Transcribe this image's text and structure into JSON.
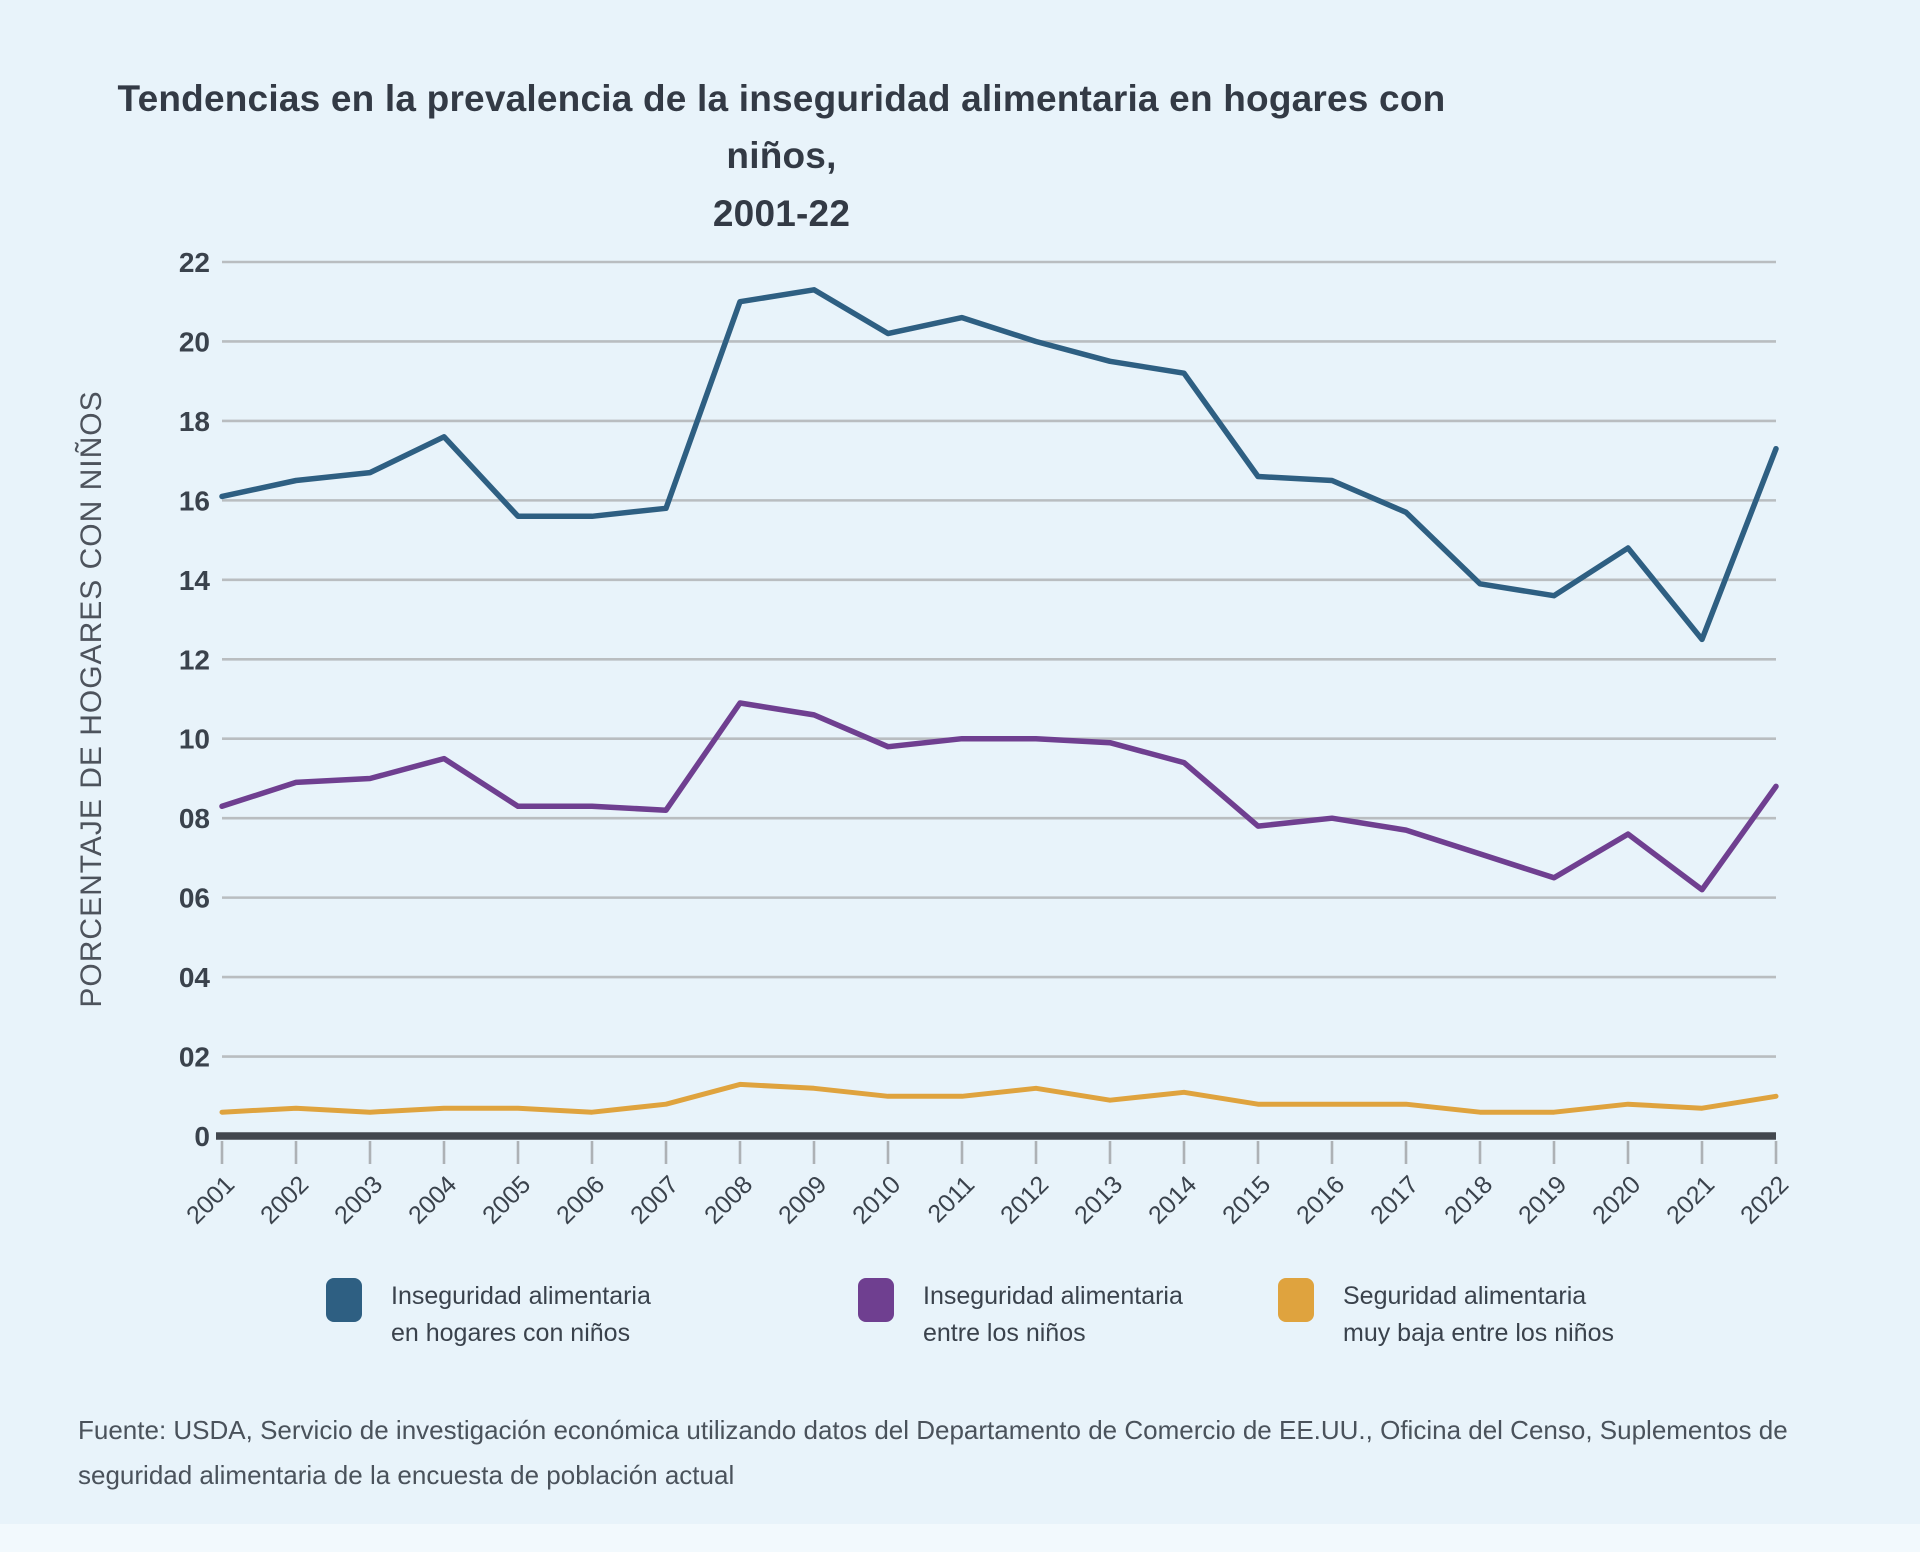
{
  "title": {
    "line1": "Tendencias en la prevalencia de la inseguridad alimentaria en hogares con niños,",
    "line2": "2001-22"
  },
  "chart_data": {
    "type": "line",
    "title": "Tendencias en la prevalencia de la inseguridad alimentaria en hogares con niños, 2001-22",
    "xlabel": "",
    "ylabel": "PORCENTAJE DE HOGARES CON NIÑOS",
    "ylim": [
      0,
      22
    ],
    "ytick_step": 2,
    "ytick_labels": [
      "0",
      "02",
      "04",
      "06",
      "08",
      "10",
      "12",
      "14",
      "16",
      "18",
      "20",
      "22"
    ],
    "grid": true,
    "legend_position": "bottom",
    "x": [
      "2001",
      "2002",
      "2003",
      "2004",
      "2005",
      "2006",
      "2007",
      "2008",
      "2009",
      "2010",
      "2011",
      "2012",
      "2013",
      "2014",
      "2015",
      "2016",
      "2017",
      "2018",
      "2019",
      "2020",
      "2021",
      "2022"
    ],
    "series": [
      {
        "name": "Inseguridad alimentaria en hogares con niños",
        "color": "#2e5f82",
        "values": [
          16.1,
          16.5,
          16.7,
          17.6,
          15.6,
          15.6,
          15.8,
          21.0,
          21.3,
          20.2,
          20.6,
          20.0,
          19.5,
          19.2,
          16.6,
          16.5,
          15.7,
          13.9,
          13.6,
          14.8,
          12.5,
          17.3
        ]
      },
      {
        "name": "Inseguridad alimentaria entre los niños",
        "color": "#6f3f90",
        "values": [
          8.3,
          8.9,
          9.0,
          9.5,
          8.3,
          8.3,
          8.2,
          10.9,
          10.6,
          9.8,
          10.0,
          10.0,
          9.9,
          9.4,
          7.8,
          8.0,
          7.7,
          7.1,
          6.5,
          7.6,
          6.2,
          8.8
        ]
      },
      {
        "name": "Seguridad alimentaria muy baja entre los niños",
        "color": "#dfa33e",
        "values": [
          0.6,
          0.7,
          0.6,
          0.7,
          0.7,
          0.6,
          0.8,
          1.3,
          1.2,
          1.0,
          1.0,
          1.2,
          0.9,
          1.1,
          0.8,
          0.8,
          0.8,
          0.6,
          0.6,
          0.8,
          0.7,
          1.0
        ]
      }
    ]
  },
  "legend": {
    "items": [
      {
        "color": "#2e5f82",
        "lines": [
          "Inseguridad alimentaria",
          "en hogares con niños"
        ]
      },
      {
        "color": "#6f3f90",
        "lines": [
          "Inseguridad alimentaria",
          "entre los niños"
        ]
      },
      {
        "color": "#dfa33e",
        "lines": [
          "Seguridad alimentaria",
          "muy baja entre los niños"
        ]
      }
    ]
  },
  "source": {
    "text": "Fuente: USDA, Servicio de investigación económica utilizando datos del Departamento de Comercio de EE.UU., Oficina del Censo, Suplementos de seguridad alimentaria de la encuesta de población actual"
  },
  "colors": {
    "background": "#e8f3fa",
    "gridline": "#b9bdc0",
    "axis": "#42474e",
    "tick": "#adb1b5",
    "title_text": "#333a45",
    "axis_label_text": "#3a424c",
    "y_axis_title_text": "#4d535c",
    "source_text": "#4a525b"
  }
}
